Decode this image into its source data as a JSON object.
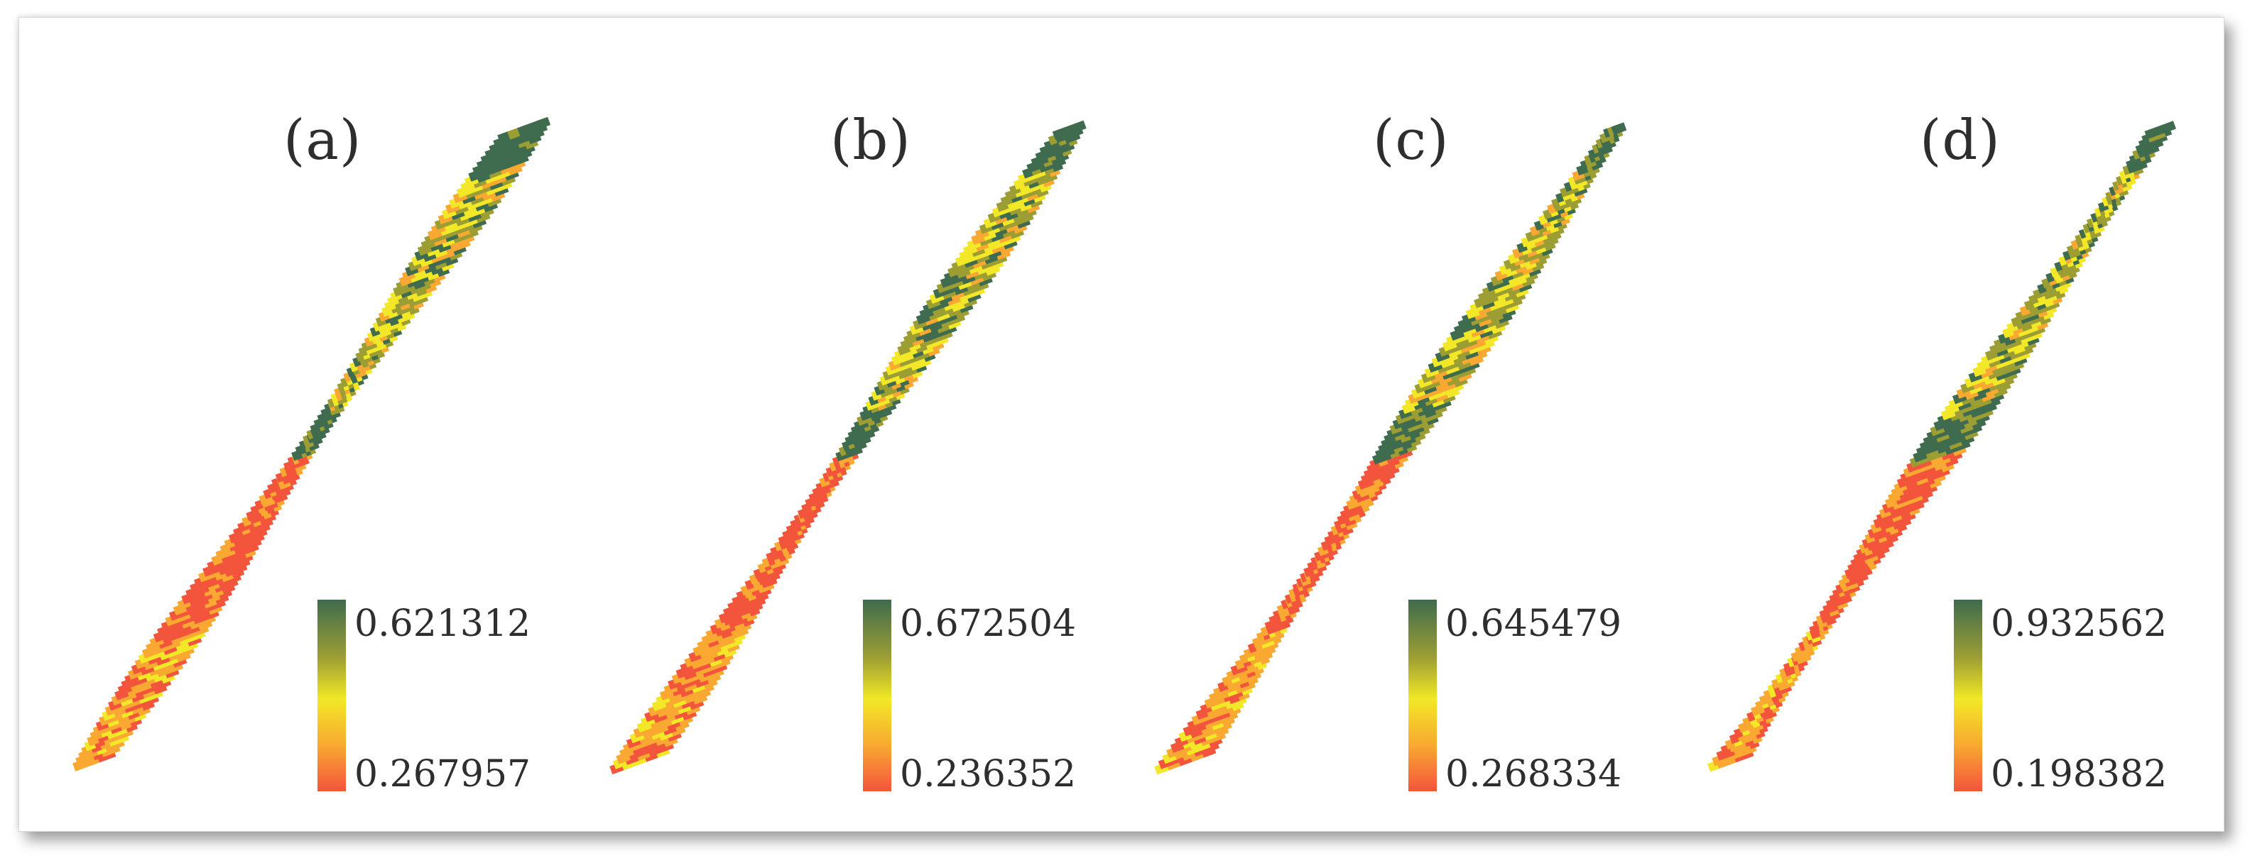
{
  "panels": [
    {
      "label": "(a)",
      "legend": {
        "max": "0.621312",
        "min": "0.267957"
      }
    },
    {
      "label": "(b)",
      "legend": {
        "max": "0.672504",
        "min": "0.236352"
      }
    },
    {
      "label": "(c)",
      "legend": {
        "max": "0.645479",
        "min": "0.268334"
      }
    },
    {
      "label": "(d)",
      "legend": {
        "max": "0.932562",
        "min": "0.198382"
      }
    }
  ],
  "colors": {
    "high": "#3f6b4e",
    "mid_high": "#9c9e33",
    "mid": "#f2e827",
    "mid_low": "#f9a832",
    "low": "#f2553b"
  }
}
